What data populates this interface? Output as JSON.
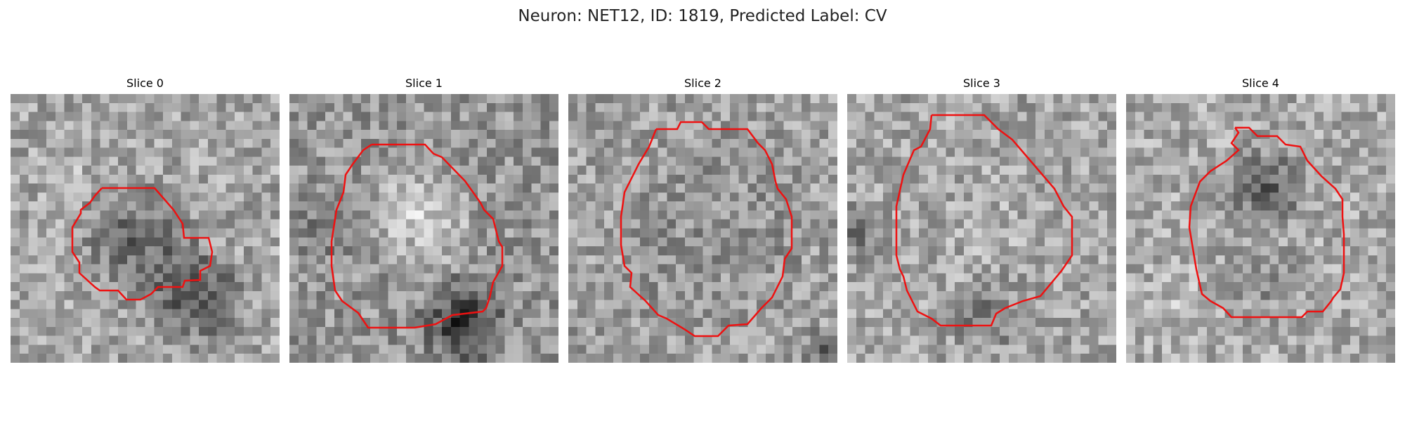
{
  "figure": {
    "title": "Neuron: NET12, ID: 1819, Predicted Label: CV"
  },
  "panels": [
    {
      "title": "Slice 0"
    },
    {
      "title": "Slice 1"
    },
    {
      "title": "Slice 2"
    },
    {
      "title": "Slice 3"
    },
    {
      "title": "Slice 4"
    }
  ],
  "colors": {
    "contour": "#ee1111",
    "background": "#ffffff",
    "colormap": "grayscale"
  }
}
